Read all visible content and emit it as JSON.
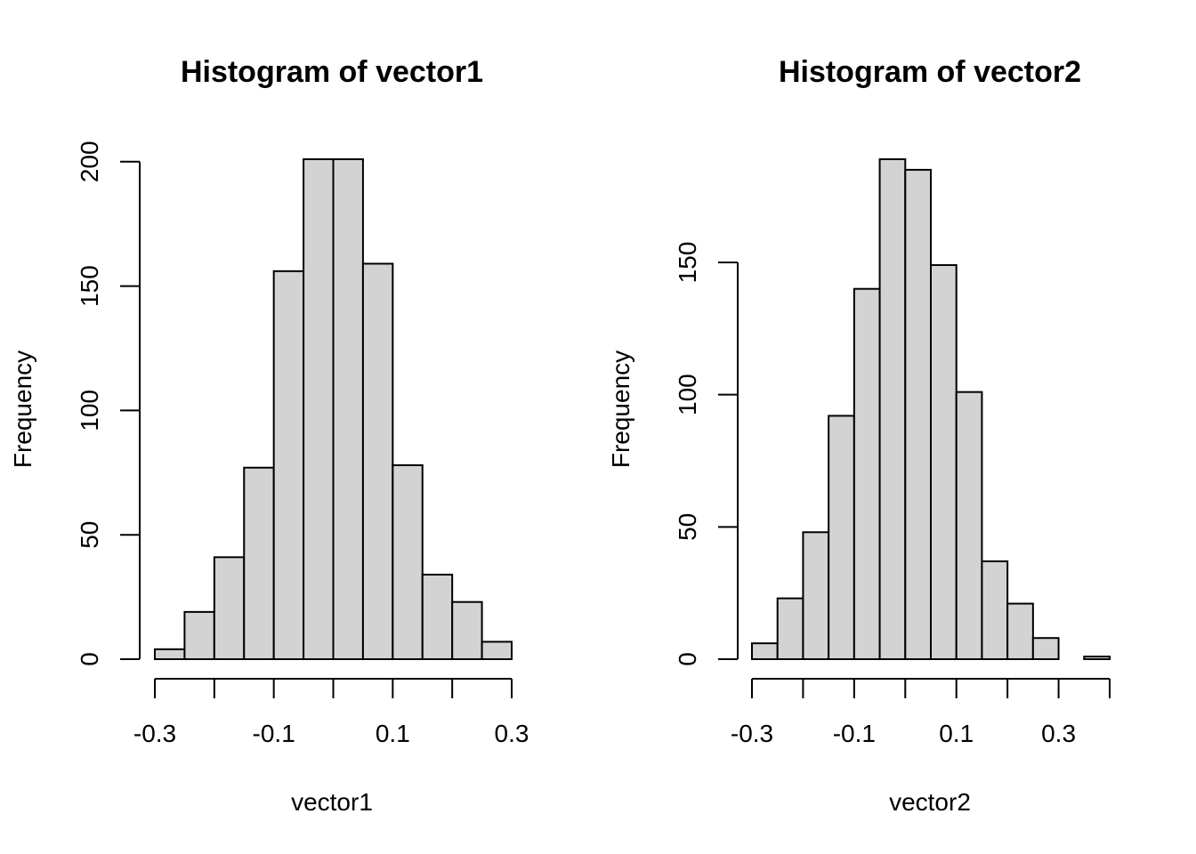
{
  "chart_data": [
    {
      "type": "bar",
      "title": "Histogram of vector1",
      "xlabel": "vector1",
      "ylabel": "Frequency",
      "bin_edges": [
        -0.3,
        -0.25,
        -0.2,
        -0.15,
        -0.1,
        -0.05,
        0.0,
        0.05,
        0.1,
        0.15,
        0.2,
        0.25,
        0.3
      ],
      "values": [
        4,
        19,
        41,
        77,
        156,
        201,
        201,
        159,
        78,
        34,
        23,
        7
      ],
      "xticks": [
        -0.3,
        -0.2,
        -0.1,
        0.0,
        0.1,
        0.2,
        0.3
      ],
      "xtick_labels": [
        "-0.3",
        "",
        "-0.1",
        "",
        "0.1",
        "",
        "0.3"
      ],
      "yticks": [
        0,
        50,
        100,
        150,
        200
      ],
      "ytick_labels": [
        "0",
        "50",
        "100",
        "150",
        "200"
      ],
      "xlim": [
        -0.3,
        0.3
      ],
      "ylim": [
        0,
        201
      ],
      "grid": false
    },
    {
      "type": "bar",
      "title": "Histogram of vector2",
      "xlabel": "vector2",
      "ylabel": "Frequency",
      "bin_edges": [
        -0.3,
        -0.25,
        -0.2,
        -0.15,
        -0.1,
        -0.05,
        0.0,
        0.05,
        0.1,
        0.15,
        0.2,
        0.25,
        0.3,
        0.35,
        0.4
      ],
      "values": [
        6,
        23,
        48,
        92,
        140,
        189,
        185,
        149,
        101,
        37,
        21,
        8,
        0,
        1
      ],
      "xticks": [
        -0.3,
        -0.2,
        -0.1,
        0.0,
        0.1,
        0.2,
        0.3,
        0.4
      ],
      "xtick_labels": [
        "-0.3",
        "",
        "-0.1",
        "",
        "0.1",
        "",
        "0.3",
        ""
      ],
      "yticks": [
        0,
        50,
        100,
        150
      ],
      "ytick_labels": [
        "0",
        "50",
        "100",
        "150"
      ],
      "xlim": [
        -0.3,
        0.4
      ],
      "ylim": [
        0,
        189
      ],
      "grid": false
    }
  ]
}
